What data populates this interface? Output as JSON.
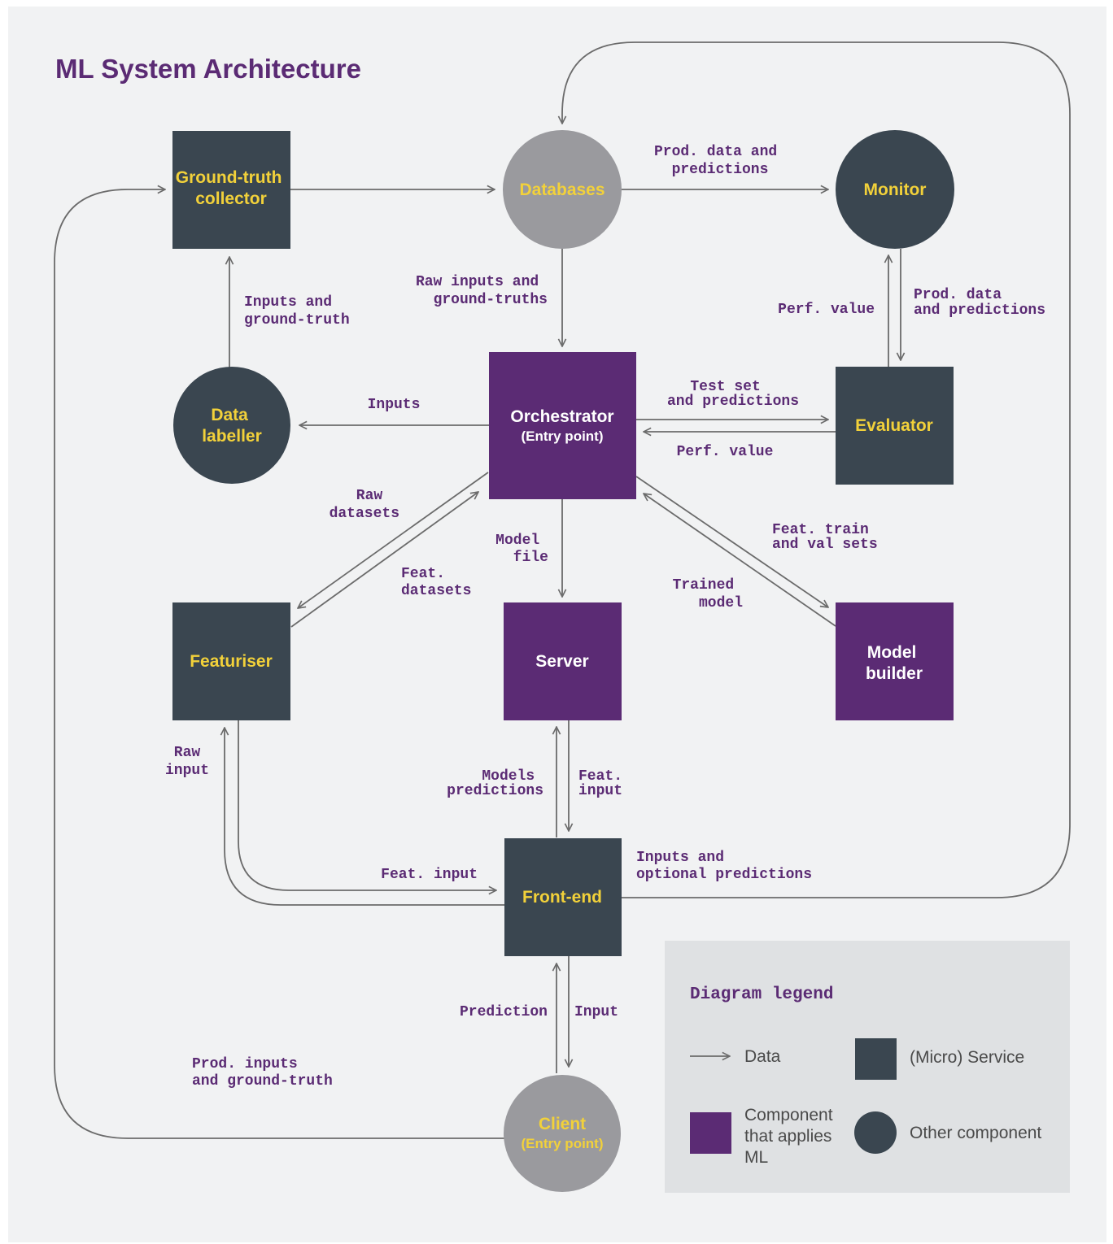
{
  "title": "ML System Architecture",
  "nodes": {
    "ground_truth_collector": [
      "Ground-truth",
      "collector"
    ],
    "databases": "Databases",
    "monitor": "Monitor",
    "data_labeller": [
      "Data",
      "labeller"
    ],
    "orchestrator": {
      "label": "Orchestrator",
      "sub": "(Entry point)"
    },
    "evaluator": "Evaluator",
    "featuriser": "Featuriser",
    "server": "Server",
    "model_builder": [
      "Model",
      "builder"
    ],
    "front_end": "Front-end",
    "client": {
      "label": "Client",
      "sub": "(Entry point)"
    }
  },
  "edges": {
    "gt_to_db": [],
    "db_to_monitor": [
      "Prod. data and",
      "predictions"
    ],
    "db_to_orchestrator": [
      "Raw inputs and",
      "ground-truths"
    ],
    "labeller_to_gt": [
      "Inputs and",
      "ground-truth"
    ],
    "orch_to_labeller": [
      "Inputs"
    ],
    "evaluator_to_monitor": [
      "Perf. value"
    ],
    "monitor_to_evaluator": [
      "Prod. data",
      "and predictions"
    ],
    "orch_to_evaluator": [
      "Test set",
      "and predictions"
    ],
    "evaluator_to_orch": [
      "Perf. value"
    ],
    "orch_to_featuriser": [
      "Raw",
      "datasets"
    ],
    "featuriser_to_orch": [
      "Feat.",
      "datasets"
    ],
    "orch_to_server": [
      "Model",
      "file"
    ],
    "orch_to_builder": [
      "Feat. train",
      "and val sets"
    ],
    "builder_to_orch": [
      "Trained",
      "model"
    ],
    "frontend_to_featuriser": [
      "Raw",
      "input"
    ],
    "featuriser_to_frontend": [
      "Feat. input"
    ],
    "server_to_frontend": [
      "Models",
      "predictions"
    ],
    "frontend_to_server": [
      "Feat.",
      "input"
    ],
    "frontend_to_db": [
      "Inputs and",
      "optional predictions"
    ],
    "frontend_to_client": [
      "Prediction"
    ],
    "client_to_frontend": [
      "Input"
    ],
    "client_to_gt": [
      "Prod. inputs",
      "and ground-truth"
    ]
  },
  "legend": {
    "title": "Diagram legend",
    "data": "Data",
    "service": "(Micro) Service",
    "ml_component": [
      "Component",
      "that applies",
      "ML"
    ],
    "other_component": "Other component"
  },
  "colors": {
    "background": "#f1f2f3",
    "service": "#3a4650",
    "ml": "#5b2b74",
    "other_light": "#9a9a9e",
    "yellow": "#f2d13a",
    "edge": "#6b6b6b",
    "label": "#5b2b74",
    "legend_bg": "#dfe1e3"
  }
}
